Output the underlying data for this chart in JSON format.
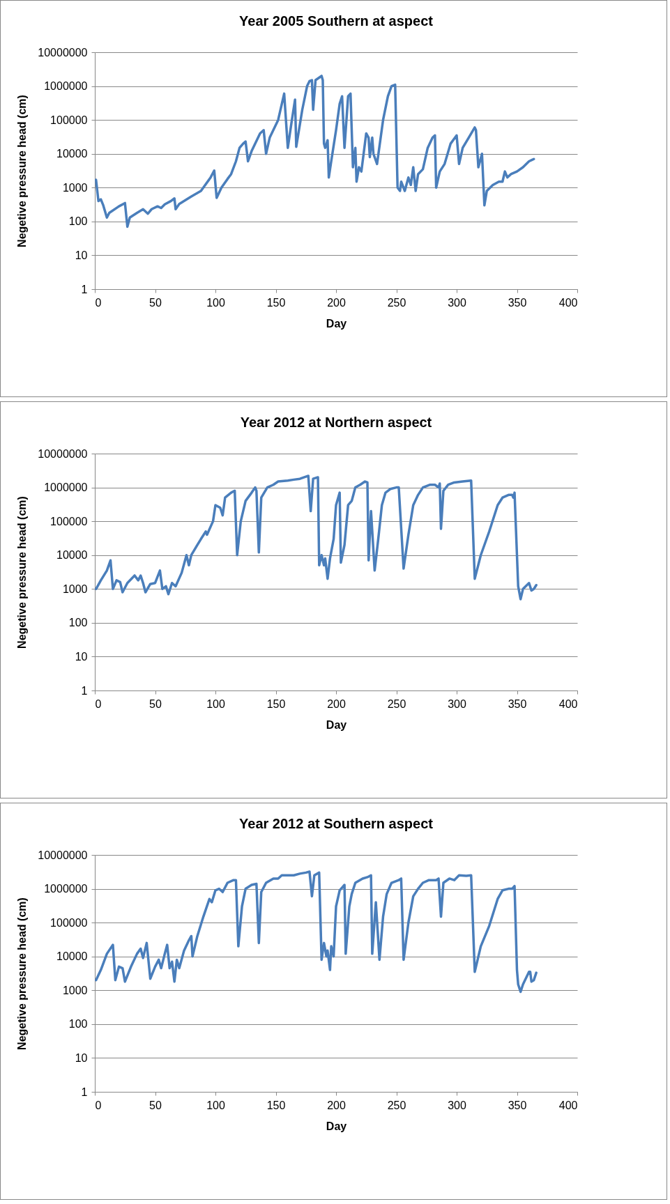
{
  "chart_data": [
    {
      "type": "line",
      "title": "Year 2005 Southern at aspect",
      "xlabel": "Day",
      "ylabel": "Negetive pressure head (cm)",
      "log": true,
      "grid": "y",
      "marker": "none",
      "line_style": "solid",
      "xlim": [
        0,
        400
      ],
      "xticks": [
        0,
        50,
        100,
        150,
        200,
        250,
        300,
        350,
        400
      ],
      "ylim": [
        1,
        10000000
      ],
      "yticks": [
        1,
        10,
        100,
        1000,
        10000,
        100000,
        1000000,
        10000000
      ],
      "series": [
        {
          "color": "#4a7ebb",
          "x": [
            1,
            3,
            5,
            7,
            10,
            12,
            20,
            25,
            27,
            29,
            35,
            40,
            44,
            47,
            52,
            55,
            58,
            63,
            66,
            67,
            70,
            80,
            88,
            96,
            99,
            101,
            105,
            110,
            113,
            117,
            120,
            123,
            125,
            127,
            130,
            137,
            140,
            142,
            145,
            152,
            157,
            160,
            163,
            166,
            167,
            172,
            176,
            178,
            180,
            181,
            183,
            188,
            189,
            190,
            191,
            193,
            194,
            196,
            200,
            203,
            205,
            207,
            210,
            212,
            214,
            216,
            217,
            219,
            221,
            225,
            227,
            228,
            230,
            231,
            234,
            239,
            243,
            246,
            249,
            251,
            253,
            254,
            257,
            260,
            262,
            264,
            266,
            268,
            272,
            276,
            280,
            282,
            283,
            286,
            290,
            295,
            300,
            302,
            305,
            310,
            315,
            316,
            318,
            321,
            323,
            325,
            330,
            335,
            338,
            340,
            342,
            345,
            350,
            355,
            360,
            364
          ],
          "values": [
            1700,
            400,
            450,
            300,
            130,
            180,
            280,
            350,
            70,
            130,
            180,
            230,
            170,
            230,
            280,
            250,
            320,
            400,
            480,
            230,
            330,
            550,
            800,
            2000,
            3200,
            500,
            1000,
            1800,
            2500,
            6000,
            15000,
            20000,
            23000,
            6000,
            12000,
            40000,
            50000,
            10000,
            30000,
            100000,
            600000,
            15000,
            80000,
            400000,
            16000,
            200000,
            1000000,
            1400000,
            1500000,
            200000,
            1500000,
            2000000,
            1500000,
            20000,
            15000,
            25000,
            2000,
            6000,
            50000,
            300000,
            500000,
            15000,
            500000,
            600000,
            4000,
            15000,
            1500,
            4000,
            3000,
            40000,
            30000,
            8000,
            30000,
            10000,
            5000,
            100000,
            500000,
            1000000,
            1100000,
            1000,
            800,
            1500,
            800,
            2000,
            1200,
            4000,
            800,
            2500,
            3500,
            15000,
            30000,
            35000,
            1000,
            3000,
            5000,
            20000,
            35000,
            5000,
            15000,
            30000,
            60000,
            50000,
            4000,
            10000,
            300,
            800,
            1200,
            1500,
            1500,
            3000,
            2000,
            2500,
            3000,
            4000,
            6000,
            7000
          ]
        }
      ]
    },
    {
      "type": "line",
      "title": "Year 2012 at Northern aspect",
      "xlabel": "Day",
      "ylabel": "Negetive pressure head (cm)",
      "log": true,
      "grid": "y",
      "marker": "none",
      "line_style": "solid",
      "xlim": [
        0,
        400
      ],
      "xticks": [
        0,
        50,
        100,
        150,
        200,
        250,
        300,
        350,
        400
      ],
      "ylim": [
        1,
        10000000
      ],
      "yticks": [
        1,
        10,
        100,
        1000,
        10000,
        100000,
        1000000,
        10000000
      ],
      "series": [
        {
          "color": "#4a7ebb",
          "x": [
            1,
            5,
            10,
            13,
            15,
            18,
            21,
            23,
            27,
            33,
            36,
            38,
            40,
            42,
            46,
            50,
            54,
            56,
            59,
            61,
            64,
            67,
            72,
            76,
            78,
            80,
            85,
            88,
            92,
            93,
            98,
            100,
            104,
            106,
            108,
            113,
            116,
            118,
            121,
            125,
            130,
            133,
            134,
            136,
            138,
            143,
            148,
            152,
            160,
            165,
            170,
            177,
            179,
            181,
            185,
            186,
            188,
            190,
            191,
            193,
            195,
            198,
            200,
            203,
            204,
            207,
            210,
            213,
            216,
            220,
            224,
            226,
            227,
            229,
            232,
            235,
            238,
            241,
            245,
            250,
            252,
            256,
            260,
            264,
            268,
            272,
            278,
            282,
            285,
            286,
            287,
            289,
            293,
            298,
            305,
            312,
            315,
            320,
            327,
            334,
            338,
            343,
            346,
            347,
            348,
            350,
            351,
            353,
            355,
            360,
            362,
            364,
            366
          ],
          "values": [
            1000,
            1800,
            3500,
            7000,
            1000,
            1800,
            1600,
            800,
            1500,
            2500,
            1800,
            2500,
            1500,
            800,
            1400,
            1500,
            3500,
            1000,
            1200,
            700,
            1500,
            1200,
            3000,
            10000,
            5000,
            10000,
            20000,
            30000,
            50000,
            40000,
            100000,
            300000,
            250000,
            150000,
            500000,
            700000,
            800000,
            10000,
            100000,
            400000,
            700000,
            1000000,
            800000,
            12000,
            500000,
            1000000,
            1200000,
            1500000,
            1600000,
            1700000,
            1800000,
            2200000,
            200000,
            1800000,
            2000000,
            5000,
            10000,
            5000,
            8000,
            2000,
            8000,
            30000,
            300000,
            700000,
            6000,
            20000,
            300000,
            400000,
            1000000,
            1200000,
            1500000,
            1400000,
            7000,
            200000,
            3500,
            30000,
            300000,
            700000,
            900000,
            1000000,
            1000000,
            4000,
            40000,
            300000,
            600000,
            1000000,
            1200000,
            1200000,
            1000000,
            1300000,
            60000,
            800000,
            1200000,
            1400000,
            1500000,
            1600000,
            2000,
            10000,
            50000,
            300000,
            500000,
            600000,
            600000,
            500000,
            700000,
            10000,
            1200,
            500,
            1000,
            1500,
            900,
            1000,
            1300
          ]
        }
      ]
    },
    {
      "type": "line",
      "title": "Year 2012 at Southern aspect",
      "xlabel": "Day",
      "ylabel": "Negetive pressure head (cm)",
      "log": true,
      "grid": "y",
      "marker": "none",
      "line_style": "solid",
      "xlim": [
        0,
        400
      ],
      "xticks": [
        0,
        50,
        100,
        150,
        200,
        250,
        300,
        350,
        400
      ],
      "ylim": [
        1,
        10000000
      ],
      "yticks": [
        1,
        10,
        100,
        1000,
        10000,
        100000,
        1000000,
        10000000
      ],
      "series": [
        {
          "color": "#4a7ebb",
          "x": [
            1,
            5,
            10,
            15,
            17,
            20,
            23,
            25,
            30,
            35,
            38,
            40,
            43,
            46,
            50,
            53,
            55,
            58,
            60,
            62,
            64,
            66,
            68,
            70,
            74,
            78,
            80,
            81,
            85,
            90,
            95,
            97,
            100,
            103,
            106,
            110,
            115,
            117,
            119,
            122,
            125,
            130,
            134,
            136,
            138,
            142,
            148,
            152,
            155,
            160,
            165,
            170,
            175,
            178,
            180,
            182,
            186,
            188,
            190,
            192,
            193,
            195,
            196,
            198,
            200,
            203,
            207,
            208,
            211,
            213,
            216,
            222,
            226,
            229,
            230,
            233,
            236,
            239,
            242,
            246,
            252,
            254,
            256,
            260,
            264,
            268,
            272,
            277,
            283,
            285,
            287,
            289,
            294,
            298,
            302,
            308,
            312,
            315,
            320,
            327,
            334,
            338,
            343,
            346,
            348,
            350,
            351,
            353,
            355,
            360,
            361,
            362,
            364,
            366
          ],
          "values": [
            2000,
            4000,
            12000,
            22000,
            2000,
            5000,
            4500,
            1800,
            5000,
            12000,
            17000,
            9000,
            25000,
            2200,
            5000,
            8000,
            4500,
            12000,
            22000,
            4500,
            7000,
            1800,
            8000,
            4500,
            15000,
            30000,
            40000,
            10000,
            40000,
            150000,
            500000,
            400000,
            900000,
            1000000,
            800000,
            1500000,
            1800000,
            1800000,
            20000,
            300000,
            1000000,
            1300000,
            1400000,
            25000,
            800000,
            1500000,
            2000000,
            2000000,
            2500000,
            2500000,
            2500000,
            2800000,
            3000000,
            3200000,
            600000,
            2500000,
            3000000,
            8000,
            25000,
            10000,
            15000,
            4000,
            20000,
            10000,
            300000,
            900000,
            1300000,
            12000,
            300000,
            700000,
            1500000,
            2000000,
            2200000,
            2500000,
            12000,
            400000,
            8000,
            150000,
            700000,
            1500000,
            1800000,
            2000000,
            8000,
            100000,
            600000,
            1000000,
            1500000,
            1800000,
            1800000,
            2000000,
            150000,
            1500000,
            2000000,
            1800000,
            2500000,
            2400000,
            2500000,
            3500,
            20000,
            80000,
            500000,
            900000,
            1000000,
            1000000,
            1200000,
            4000,
            1500,
            900,
            1500,
            3500,
            3500,
            1800,
            2000,
            3300
          ]
        }
      ]
    }
  ]
}
